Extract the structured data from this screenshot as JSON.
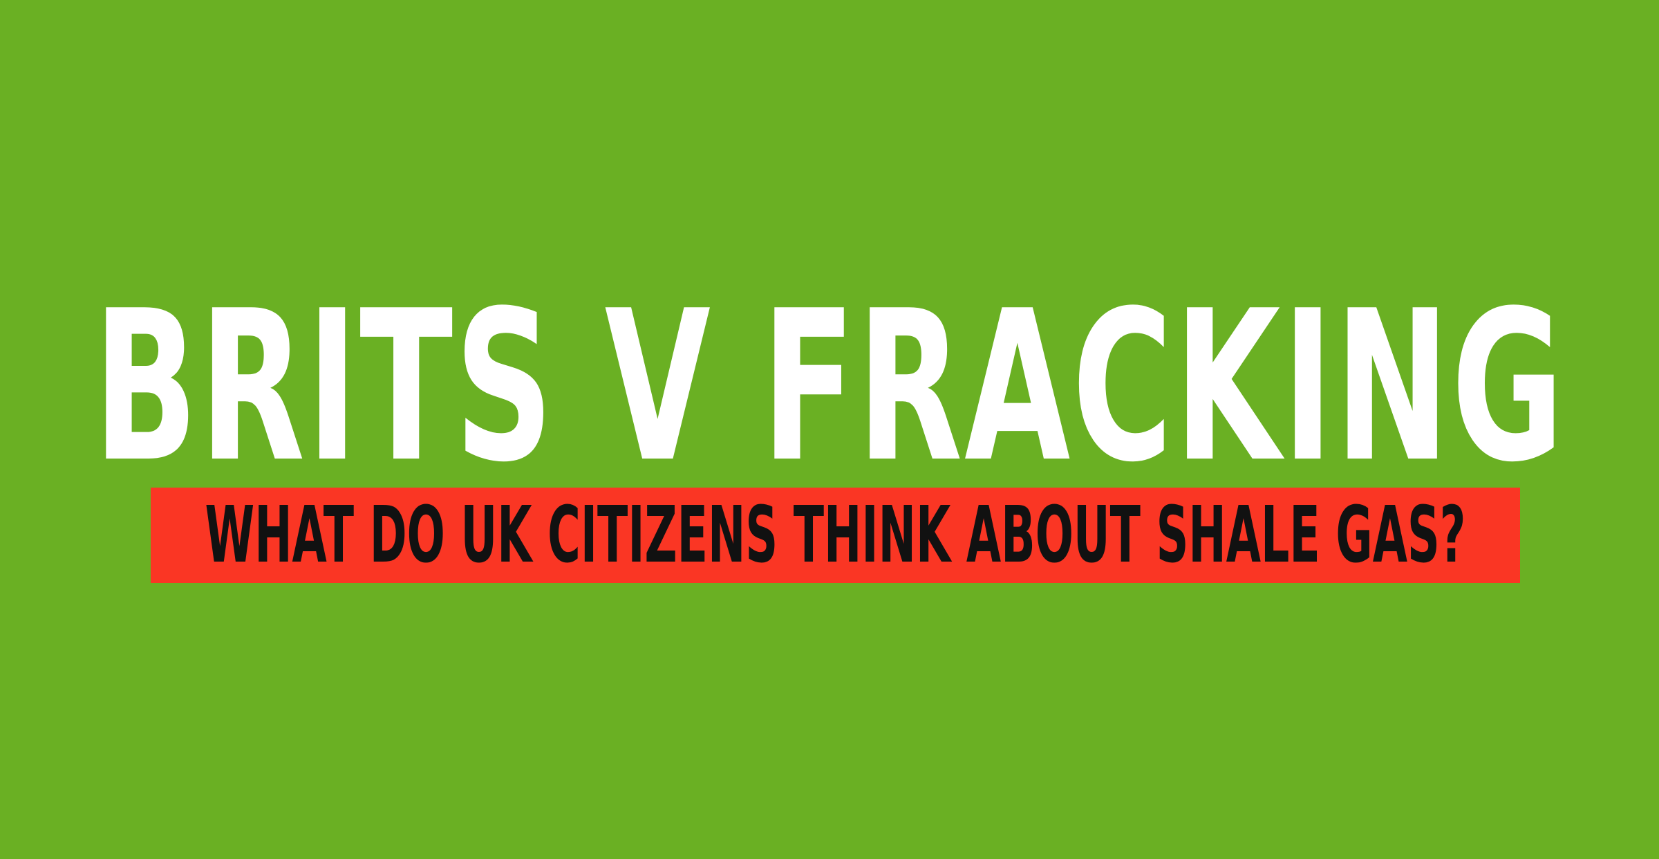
{
  "headline": {
    "title": "BRITS V FRACKING",
    "subtitle": "WHAT DO UK CITIZENS THINK ABOUT SHALE GAS?"
  },
  "colors": {
    "background": "#6ab023",
    "title_text": "#ffffff",
    "banner_background": "#fa3624",
    "banner_text": "#111111"
  }
}
